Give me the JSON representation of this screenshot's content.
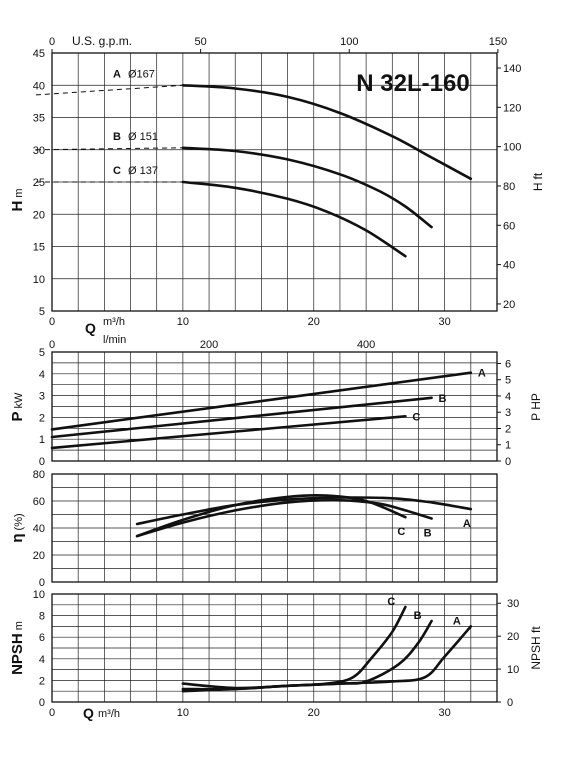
{
  "chart_data": [
    {
      "type": "line",
      "title": "N 32L-160",
      "ylabel": "H",
      "ylabel_unit": "m",
      "ylabel_right": "H",
      "ylabel_right_unit": "ft",
      "xlabel_bottom": "Q",
      "xlabel_bottom_unit": "m³/h",
      "xlabel_top": "U.S. g.p.m.",
      "xlim": [
        0,
        34
      ],
      "ylim": [
        5,
        45
      ],
      "x_ticks": [
        "0",
        "10",
        "20",
        "30"
      ],
      "y_ticks": [
        "5",
        "10",
        "15",
        "20",
        "25",
        "30",
        "35",
        "40",
        "45"
      ],
      "top_ticks": [
        "0",
        "50",
        "100",
        "150"
      ],
      "right_ticks": [
        "20",
        "40",
        "60",
        "80",
        "100",
        "120",
        "140"
      ],
      "series": [
        {
          "name": "A",
          "diameter_label": "Ø167",
          "x": [
            10,
            14,
            18,
            22,
            26,
            29,
            32
          ],
          "y": [
            40,
            39.5,
            38.2,
            35.7,
            32.1,
            28.8,
            25.5
          ]
        },
        {
          "name": "B",
          "diameter_label": "Ø  151",
          "x": [
            10,
            14,
            18,
            22,
            25,
            27,
            29
          ],
          "y": [
            30.3,
            29.8,
            28.5,
            26.2,
            23.6,
            21.2,
            18
          ]
        },
        {
          "name": "C",
          "diameter_label": "Ø  137",
          "x": [
            10,
            14,
            18,
            21,
            24,
            27
          ],
          "y": [
            25,
            24.1,
            22.4,
            20.4,
            17.5,
            13.5
          ]
        }
      ],
      "extrapolated": [
        {
          "name": "A",
          "x": [
            0,
            10
          ],
          "y": [
            38.5,
            40
          ]
        },
        {
          "name": "B",
          "x": [
            0,
            10
          ],
          "y": [
            30,
            30.3
          ]
        },
        {
          "name": "C",
          "x": [
            0,
            10
          ],
          "y": [
            25,
            25
          ]
        }
      ]
    },
    {
      "type": "line",
      "ylabel": "P",
      "ylabel_unit": "kW",
      "ylabel_right": "P HP",
      "xlabel_top": "l/min",
      "xlim": [
        0,
        34
      ],
      "ylim": [
        0,
        5
      ],
      "y_ticks": [
        "0",
        "1",
        "2",
        "3",
        "4",
        "5"
      ],
      "top_ticks": [
        "0",
        "200",
        "400"
      ],
      "right_ticks": [
        "0",
        "1",
        "2",
        "3",
        "4",
        "5",
        "6"
      ],
      "series": [
        {
          "name": "A",
          "x": [
            0,
            32
          ],
          "y": [
            1.45,
            4.05
          ]
        },
        {
          "name": "B",
          "x": [
            0,
            29
          ],
          "y": [
            1.1,
            2.9
          ]
        },
        {
          "name": "C",
          "x": [
            0,
            27
          ],
          "y": [
            0.6,
            2.05
          ]
        }
      ]
    },
    {
      "type": "line",
      "ylabel": "η",
      "ylabel_unit": "(%)",
      "xlim": [
        0,
        34
      ],
      "ylim": [
        0,
        80
      ],
      "y_ticks": [
        "0",
        "20",
        "40",
        "60",
        "80"
      ],
      "series": [
        {
          "name": "A",
          "x": [
            6.5,
            10,
            14,
            18,
            22,
            26,
            29,
            32
          ],
          "y": [
            43,
            50,
            57,
            61,
            62.5,
            62,
            59,
            54
          ]
        },
        {
          "name": "B",
          "x": [
            6.5,
            10,
            14,
            18,
            22,
            25,
            27,
            29
          ],
          "y": [
            34,
            44,
            53,
            59,
            60.5,
            58,
            53,
            47
          ]
        },
        {
          "name": "C",
          "x": [
            6.5,
            10,
            14,
            18,
            21,
            24,
            27
          ],
          "y": [
            34,
            46,
            57,
            63,
            64,
            60,
            48
          ]
        }
      ]
    },
    {
      "type": "line",
      "ylabel": "NPSH",
      "ylabel_unit": "m",
      "ylabel_right": "NPSH ft",
      "xlabel_bottom": "Q",
      "xlabel_bottom_unit": "m³/h",
      "xlim": [
        0,
        34
      ],
      "ylim": [
        0,
        10
      ],
      "x_ticks": [
        "0",
        "10",
        "20",
        "30"
      ],
      "y_ticks": [
        "0",
        "2",
        "4",
        "6",
        "8",
        "10"
      ],
      "right_ticks": [
        "0",
        "10",
        "20",
        "30"
      ],
      "series": [
        {
          "name": "A",
          "x": [
            10,
            14,
            18,
            22,
            26,
            28.5,
            30,
            32
          ],
          "y": [
            1.7,
            1.3,
            1.5,
            1.7,
            1.9,
            2.3,
            4.2,
            7
          ]
        },
        {
          "name": "B",
          "x": [
            10,
            14,
            18,
            22,
            24,
            26.5,
            28,
            29
          ],
          "y": [
            1.2,
            1.2,
            1.5,
            1.7,
            1.9,
            3.5,
            5.5,
            7.5
          ]
        },
        {
          "name": "C",
          "x": [
            10,
            14,
            18,
            21,
            23,
            24.5,
            26,
            27
          ],
          "y": [
            1,
            1.2,
            1.5,
            1.7,
            2.3,
            4.2,
            6.5,
            8.8
          ]
        }
      ]
    }
  ]
}
